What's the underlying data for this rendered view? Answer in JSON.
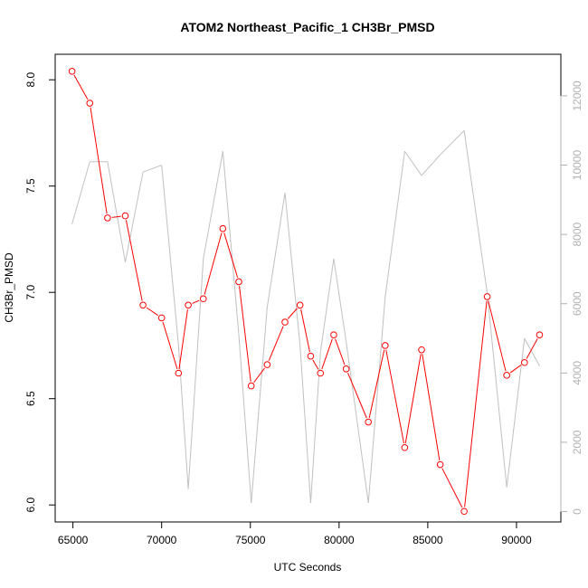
{
  "chart_data": {
    "type": "line",
    "title": "ATOM2 Northeast_Pacific_1 CH3Br_PMSD",
    "xlabel": "UTC Seconds",
    "ylabel": "CH3Br_PMSD",
    "xlim": [
      64000,
      92500
    ],
    "ylim": [
      5.92,
      8.12
    ],
    "y2lim": [
      -300,
      13200
    ],
    "x_ticks": [
      65000,
      70000,
      75000,
      80000,
      85000,
      90000
    ],
    "y_ticks": [
      6.0,
      6.5,
      7.0,
      7.5,
      8.0
    ],
    "y_tick_labels": [
      "6.0",
      "6.5",
      "7.0",
      "7.5",
      "8.0"
    ],
    "y2_ticks": [
      0,
      2000,
      4000,
      6000,
      8000,
      10000,
      12000
    ],
    "colors": {
      "primary": "#ff0000",
      "secondary": "#c0c0c0",
      "axes": "#000000",
      "right_axis": "#b0b0b0"
    },
    "series": [
      {
        "axis": "left",
        "marker": "circle",
        "color": "#ff0000",
        "x": [
          64950,
          65950,
          66950,
          67950,
          68950,
          70000,
          70950,
          71500,
          72350,
          73450,
          74350,
          75050,
          75950,
          76950,
          77800,
          78400,
          78950,
          79700,
          80400,
          81650,
          82600,
          83700,
          84650,
          85700,
          87050,
          88350,
          89450,
          90450,
          91300
        ],
        "values": [
          8.04,
          7.89,
          7.35,
          7.36,
          6.94,
          6.88,
          6.62,
          6.94,
          6.97,
          7.3,
          7.05,
          6.56,
          6.66,
          6.86,
          6.94,
          6.7,
          6.62,
          6.8,
          6.64,
          6.39,
          6.75,
          6.27,
          6.73,
          6.19,
          5.97,
          6.98,
          6.61,
          6.67,
          6.8
        ]
      },
      {
        "axis": "right",
        "marker": "none",
        "color": "#c0c0c0",
        "x": [
          64950,
          65950,
          66950,
          67950,
          68950,
          70000,
          70950,
          71500,
          72350,
          73450,
          74350,
          75050,
          75950,
          76950,
          77800,
          78400,
          78950,
          79700,
          80400,
          81650,
          82600,
          83700,
          84650,
          85700,
          87050,
          88350,
          89450,
          90450,
          91300
        ],
        "values": [
          8300,
          10100,
          10100,
          7200,
          9800,
          10000,
          4800,
          650,
          7300,
          10400,
          5100,
          250,
          5900,
          9200,
          4800,
          250,
          4600,
          7300,
          4900,
          250,
          6200,
          10400,
          9700,
          10300,
          11000,
          6300,
          700,
          5000,
          4200
        ]
      }
    ]
  }
}
